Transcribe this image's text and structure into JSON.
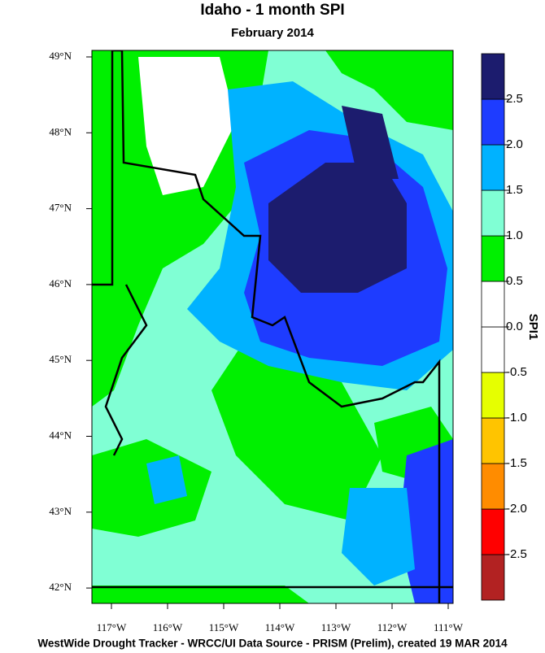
{
  "map": {
    "title": "Idaho - 1 month SPI",
    "subtitle": "February 2014",
    "latitude_labels": [
      "49°N",
      "48°N",
      "47°N",
      "46°N",
      "45°N",
      "44°N",
      "43°N",
      "42°N"
    ],
    "longitude_labels": [
      "117°W",
      "116°W",
      "115°W",
      "114°W",
      "113°W",
      "112°W",
      "111°W"
    ],
    "colorbar": {
      "title": "SPI1",
      "range": [
        -3,
        3
      ],
      "colors": [
        "#b22222",
        "#ff0000",
        "#ff8c00",
        "#ffc400",
        "#e6ff00",
        "#ffffff",
        "#ffffff",
        "#00f000",
        "#80ffd4",
        "#00b2ff",
        "#1e3cff",
        "#1c1c6e"
      ],
      "ticks": [
        -2.5,
        {
          "value": -2,
          "label": "-2.0"
        },
        -1.5,
        {
          "value": -1,
          "label": "-1.0"
        },
        -0.5,
        {
          "value": 0,
          "label": "0.0"
        },
        0.5,
        {
          "value": 1,
          "label": "1.0"
        },
        1.5,
        {
          "value": 2,
          "label": "2.0"
        },
        2.5
      ]
    },
    "footer": "WestWide Drought Tracker - WRCC/UI  Data Source - PRISM (Prelim), created 19 MAR 2014"
  }
}
